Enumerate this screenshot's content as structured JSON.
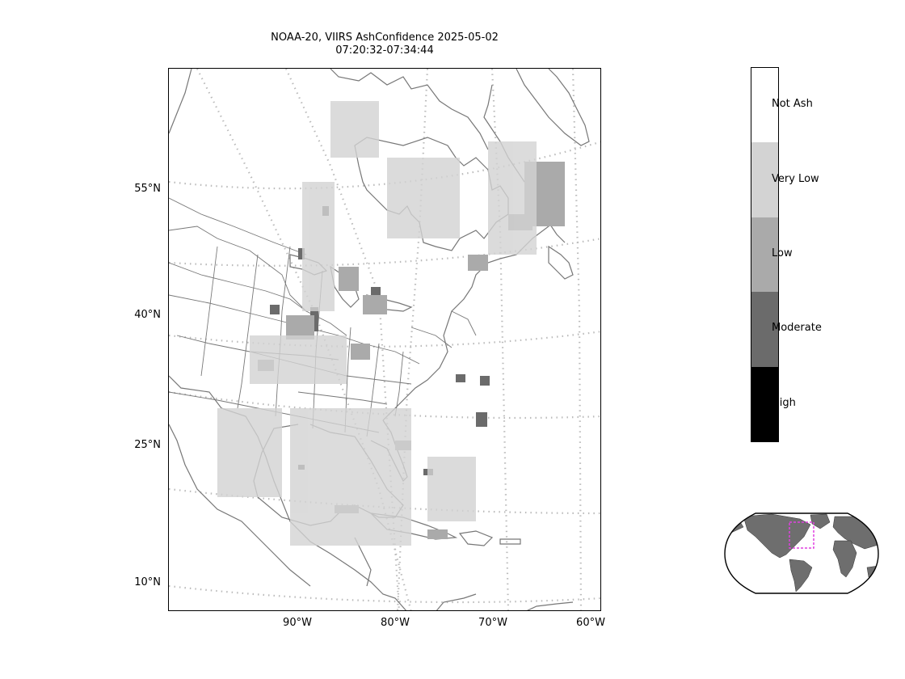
{
  "title": {
    "line1": "NOAA-20, VIIRS AshConfidence 2025-05-02",
    "line2": "07:20:32-07:34:44"
  },
  "map": {
    "lat_labels": [
      "55°N",
      "40°N",
      "25°N",
      "10°N"
    ],
    "lon_labels": [
      "90°W",
      "80°W",
      "70°W",
      "60°W"
    ],
    "coastline_color": "#777777",
    "gridline_color": "#bbbbbb",
    "ash_pixel_colors": [
      "#6b6b6b",
      "#aaaaaa",
      "#d3d3d3"
    ]
  },
  "colorbar": {
    "categories": [
      {
        "label": "Not Ash",
        "color": "#ffffff"
      },
      {
        "label": "Very Low",
        "color": "#d3d3d3"
      },
      {
        "label": "Low",
        "color": "#aaaaaa"
      },
      {
        "label": "Moderate",
        "color": "#6b6b6b"
      },
      {
        "label": "High",
        "color": "#000000"
      }
    ]
  },
  "inset": {
    "land_color": "#6e6e6e",
    "domain_box_color": "#e040e0"
  }
}
